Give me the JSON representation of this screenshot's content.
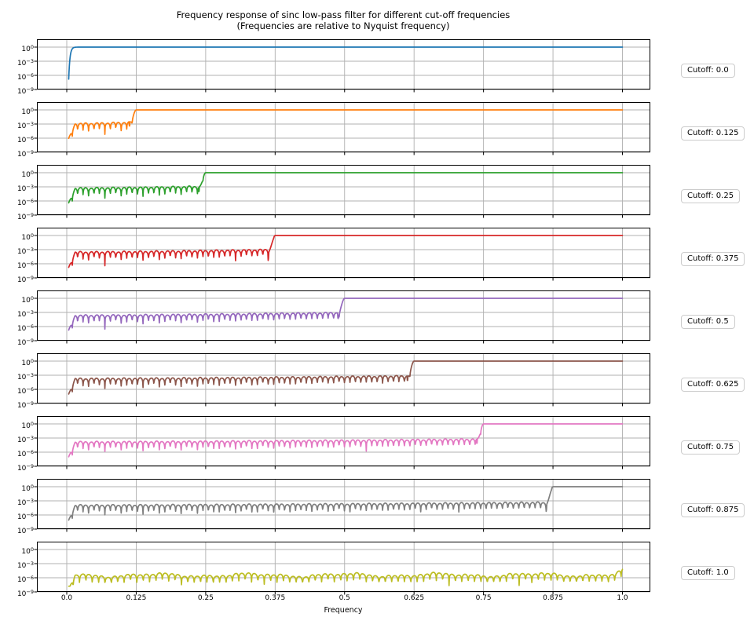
{
  "title": {
    "line1": "Frequency response of sinc low-pass filter for different cut-off frequencies",
    "line2": "(Frequencies are relative to Nyquist frequency)"
  },
  "colors": {
    "grid": "#b0b0b0",
    "spine": "#000000",
    "background": "#ffffff",
    "cutoff_box_border": "#cccccc"
  },
  "chart_data": {
    "type": "line",
    "title": "Frequency response of sinc low-pass filter for different cut-off frequencies (Frequencies are relative to Nyquist frequency)",
    "xlabel": "Frequency",
    "x_range": [
      0.0,
      1.0
    ],
    "x_tick_labels": [
      "0.0",
      "0.125",
      "0.25",
      "0.375",
      "0.5",
      "0.625",
      "0.75",
      "0.875",
      "1.0"
    ],
    "x_tick_values": [
      0.0,
      0.125,
      0.25,
      0.375,
      0.5,
      0.625,
      0.75,
      0.875,
      1.0
    ],
    "y_scale": "log",
    "y_tick_exponents": [
      0,
      -3,
      -6,
      -9
    ],
    "grid": true,
    "ripple_period_freq": 0.0098,
    "subplots": [
      {
        "label": "Cutoff: 0.0",
        "cutoff": 0.0,
        "color": "#1f77b4",
        "shape": {
          "start_log10": -6.8,
          "passband_level_log10": 0,
          "rise_at_freq": 0.005
        }
      },
      {
        "label": "Cutoff: 0.125",
        "cutoff": 0.125,
        "color": "#ff7f0e",
        "shape": {
          "start_log10": -7.2,
          "ripple_top_log10": [
            -2.9,
            -2.55
          ],
          "ripple_floor_log10": [
            -5.9,
            -4.6
          ],
          "passband_level_log10": 0
        }
      },
      {
        "label": "Cutoff: 0.25",
        "cutoff": 0.25,
        "color": "#2ca02c",
        "shape": {
          "start_log10": -7.2,
          "ripple_top_log10": [
            -3.25,
            -2.85
          ],
          "ripple_floor_log10": [
            -5.8,
            -4.35
          ],
          "passband_level_log10": 0
        }
      },
      {
        "label": "Cutoff: 0.375",
        "cutoff": 0.375,
        "color": "#d62728",
        "shape": {
          "start_log10": -7.2,
          "ripple_top_log10": [
            -3.5,
            -2.95
          ],
          "ripple_floor_log10": [
            -5.9,
            -4.1
          ],
          "passband_level_log10": 0
        }
      },
      {
        "label": "Cutoff: 0.5",
        "cutoff": 0.5,
        "color": "#9467bd",
        "shape": {
          "start_log10": -7.2,
          "ripple_top_log10": [
            -3.6,
            -3.0
          ],
          "ripple_floor_log10": [
            -5.9,
            -4.1
          ],
          "passband_level_log10": 0
        }
      },
      {
        "label": "Cutoff: 0.625",
        "cutoff": 0.625,
        "color": "#8c564b",
        "shape": {
          "start_log10": -7.2,
          "ripple_top_log10": [
            -3.7,
            -3.1
          ],
          "ripple_floor_log10": [
            -6.0,
            -4.2
          ],
          "passband_level_log10": 0
        }
      },
      {
        "label": "Cutoff: 0.75",
        "cutoff": 0.75,
        "color": "#e377c2",
        "shape": {
          "start_log10": -7.2,
          "ripple_top_log10": [
            -3.8,
            -3.2
          ],
          "ripple_floor_log10": [
            -6.0,
            -4.3
          ],
          "passband_level_log10": 0
        }
      },
      {
        "label": "Cutoff: 0.875",
        "cutoff": 0.875,
        "color": "#7f7f7f",
        "shape": {
          "start_log10": -7.2,
          "ripple_top_log10": [
            -3.9,
            -3.3
          ],
          "ripple_floor_log10": [
            -6.1,
            -4.4
          ],
          "passband_level_log10": 0
        }
      },
      {
        "label": "Cutoff: 1.0",
        "cutoff": 1.0,
        "color": "#bcbd22",
        "shape": {
          "start_log10": -7.2,
          "ripple_top_log10": [
            -5.4,
            -5.3
          ],
          "ripple_floor_log10": [
            -7.0,
            -6.7
          ],
          "end_rise_log10": -4.3
        }
      }
    ]
  }
}
